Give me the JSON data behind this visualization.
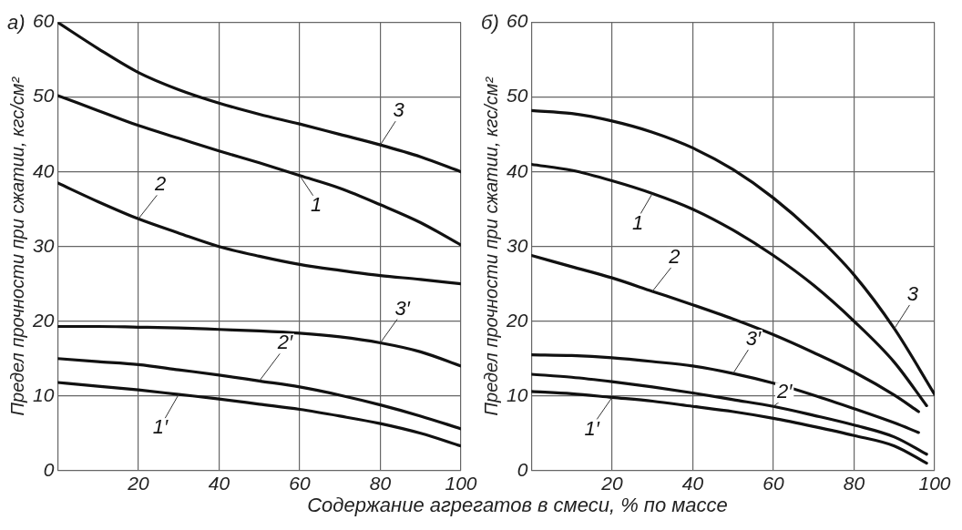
{
  "chart_data": [
    {
      "type": "line",
      "title": "а)",
      "xlabel": "Содержание агрегатов в смеси, % по массе",
      "ylabel": "Предел прочности при сжатии, кгс/см²",
      "xlim": [
        0,
        100
      ],
      "ylim": [
        0,
        60
      ],
      "xticks": [
        {
          "value": 0,
          "label": null
        },
        20,
        40,
        60,
        80,
        100
      ],
      "yticks": [
        0,
        10,
        20,
        30,
        40,
        50,
        60
      ],
      "grid": true,
      "legend": false,
      "marker": "none",
      "line_style": "solid",
      "series": [
        {
          "name": "3",
          "color": "#111111",
          "x": [
            0,
            10,
            20,
            30,
            40,
            50,
            60,
            70,
            80,
            90,
            100
          ],
          "values": [
            60,
            56.5,
            53.3,
            51,
            49.2,
            47.7,
            46.4,
            45,
            43.6,
            42,
            40
          ]
        },
        {
          "name": "1",
          "color": "#111111",
          "x": [
            0,
            10,
            20,
            30,
            40,
            50,
            60,
            70,
            80,
            90,
            100
          ],
          "values": [
            50.2,
            48.2,
            46.2,
            44.5,
            42.8,
            41.2,
            39.5,
            37.8,
            35.6,
            33.2,
            30.2
          ]
        },
        {
          "name": "2",
          "color": "#111111",
          "x": [
            0,
            10,
            20,
            30,
            40,
            50,
            60,
            70,
            80,
            90,
            100
          ],
          "values": [
            38.5,
            36,
            33.7,
            31.8,
            30,
            28.7,
            27.6,
            26.8,
            26.1,
            25.6,
            25
          ]
        },
        {
          "name": "3′",
          "color": "#111111",
          "x": [
            0,
            10,
            20,
            30,
            40,
            50,
            60,
            70,
            80,
            90,
            100
          ],
          "values": [
            19.3,
            19.3,
            19.2,
            19.1,
            18.9,
            18.7,
            18.4,
            17.9,
            17.1,
            15.9,
            14
          ]
        },
        {
          "name": "2′",
          "color": "#111111",
          "x": [
            0,
            10,
            20,
            30,
            40,
            50,
            60,
            70,
            80,
            90,
            100
          ],
          "values": [
            15,
            14.6,
            14.2,
            13.5,
            12.8,
            12,
            11.2,
            10.1,
            8.8,
            7.3,
            5.6
          ]
        },
        {
          "name": "1′",
          "color": "#111111",
          "x": [
            0,
            10,
            20,
            30,
            40,
            50,
            60,
            70,
            80,
            90,
            100
          ],
          "values": [
            11.8,
            11.3,
            10.8,
            10.2,
            9.6,
            8.9,
            8.2,
            7.3,
            6.3,
            5,
            3.3
          ]
        }
      ]
    },
    {
      "type": "line",
      "title": "б)",
      "ylabel": "Предел прочности при сжатии, кгс/см²",
      "xlim": [
        0,
        100
      ],
      "ylim": [
        0,
        60
      ],
      "xticks": [
        {
          "value": 0,
          "label": null
        },
        20,
        40,
        60,
        80,
        100
      ],
      "yticks": [
        0,
        10,
        20,
        30,
        40,
        50,
        60
      ],
      "grid": true,
      "legend": false,
      "marker": "none",
      "line_style": "solid",
      "series": [
        {
          "name": "3",
          "color": "#111111",
          "x": [
            0,
            10,
            20,
            30,
            40,
            50,
            60,
            70,
            80,
            90,
            100
          ],
          "values": [
            48.2,
            47.8,
            46.8,
            45.3,
            43.2,
            40.3,
            36.5,
            31.8,
            26.2,
            19,
            10.2
          ]
        },
        {
          "name": "1",
          "color": "#111111",
          "x": [
            0,
            10,
            20,
            30,
            40,
            50,
            60,
            70,
            80,
            90,
            98
          ],
          "values": [
            41,
            40.2,
            38.8,
            37.1,
            35,
            32.2,
            28.8,
            24.8,
            20,
            14.5,
            8.7
          ]
        },
        {
          "name": "2",
          "color": "#111111",
          "x": [
            0,
            10,
            20,
            30,
            40,
            50,
            60,
            70,
            80,
            90,
            96
          ],
          "values": [
            28.8,
            27.3,
            25.8,
            24,
            22.2,
            20.3,
            18.2,
            15.8,
            13.2,
            10.1,
            7.9
          ]
        },
        {
          "name": "3′",
          "color": "#111111",
          "x": [
            0,
            10,
            20,
            30,
            40,
            50,
            60,
            70,
            80,
            90,
            96
          ],
          "values": [
            15.5,
            15.4,
            15.1,
            14.6,
            14,
            13,
            11.7,
            10.1,
            8.3,
            6.4,
            5.1
          ]
        },
        {
          "name": "2′",
          "color": "#111111",
          "x": [
            0,
            10,
            20,
            30,
            40,
            50,
            60,
            70,
            80,
            90,
            98
          ],
          "values": [
            12.9,
            12.5,
            11.9,
            11.2,
            10.4,
            9.5,
            8.6,
            7.4,
            6.1,
            4.5,
            2.2
          ]
        },
        {
          "name": "1′",
          "color": "#111111",
          "x": [
            0,
            10,
            20,
            30,
            40,
            50,
            60,
            70,
            80,
            90,
            98
          ],
          "values": [
            10.6,
            10.3,
            9.8,
            9.3,
            8.6,
            7.9,
            7,
            5.9,
            4.7,
            3.3,
            1
          ]
        }
      ]
    }
  ]
}
